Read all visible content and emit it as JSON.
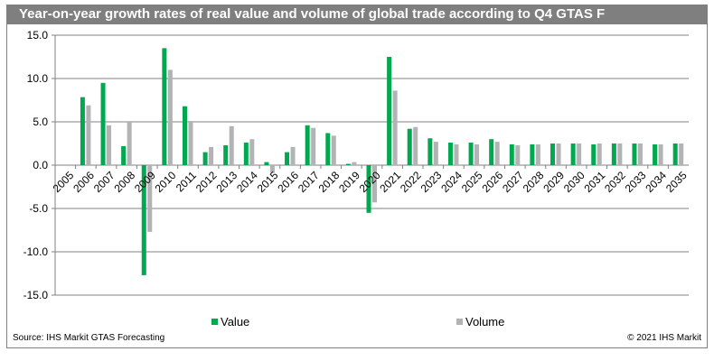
{
  "chart_data": {
    "type": "bar",
    "title": "Year-on-year growth rates of real value and volume of global trade according to Q4 GTAS F",
    "categories": [
      "2005",
      "2006",
      "2007",
      "2008",
      "2009",
      "2010",
      "2011",
      "2012",
      "2013",
      "2014",
      "2015",
      "2016",
      "2017",
      "2018",
      "2019",
      "2020",
      "2021",
      "2022",
      "2023",
      "2024",
      "2025",
      "2026",
      "2027",
      "2028",
      "2029",
      "2030",
      "2031",
      "2032",
      "2033",
      "2034",
      "2035"
    ],
    "series": [
      {
        "name": "Value",
        "color": "#00a84f",
        "values": [
          null,
          7.85,
          9.5,
          2.2,
          -12.7,
          13.5,
          6.8,
          1.5,
          2.3,
          2.6,
          0.35,
          1.5,
          4.6,
          3.7,
          0.15,
          -5.5,
          12.5,
          4.2,
          3.1,
          2.6,
          2.6,
          3.0,
          2.4,
          2.4,
          2.5,
          2.5,
          2.4,
          2.5,
          2.5,
          2.4,
          2.5
        ]
      },
      {
        "name": "Volume",
        "color": "#b3b3b6",
        "values": [
          null,
          6.9,
          4.6,
          5.0,
          -7.7,
          11.0,
          5.1,
          2.1,
          4.5,
          3.0,
          -0.9,
          2.1,
          4.3,
          3.4,
          0.35,
          -4.3,
          8.6,
          4.4,
          2.7,
          2.4,
          2.4,
          2.7,
          2.3,
          2.4,
          2.5,
          2.5,
          2.5,
          2.5,
          2.5,
          2.4,
          2.5
        ]
      }
    ],
    "ylim": [
      -15,
      15
    ],
    "yticks": [
      "15.0",
      "10.0",
      "5.0",
      "0.0",
      "-5.0",
      "-10.0",
      "-15.0"
    ],
    "grid": true,
    "legend": "bottom"
  },
  "footer": {
    "source": "Source: IHS Markit GTAS Forecasting",
    "copyright": "© 2021 IHS Markit"
  }
}
